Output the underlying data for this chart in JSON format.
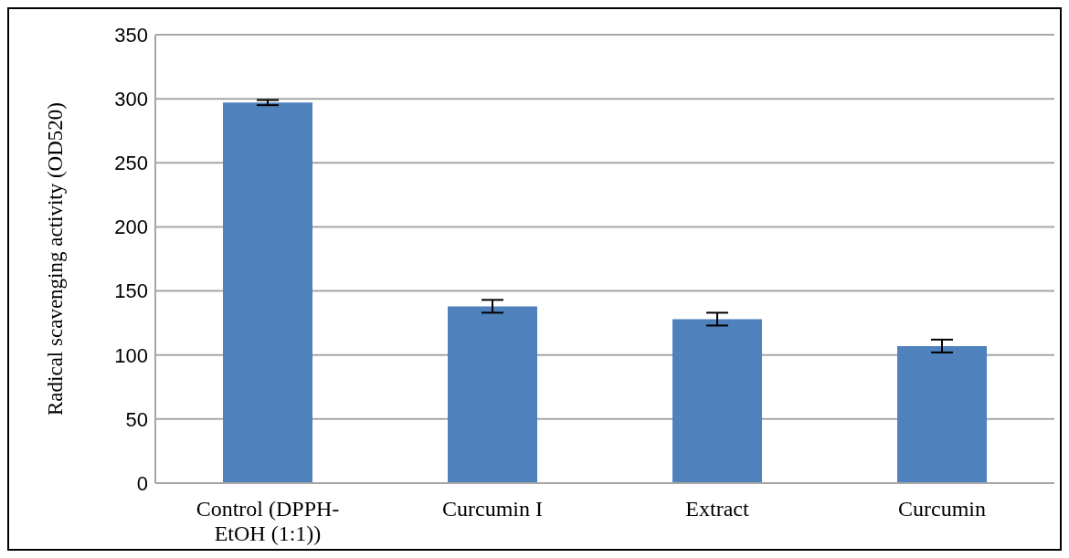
{
  "chart_data": {
    "type": "bar",
    "ylabel": "Radical scavenging activity (OD520)",
    "categories": [
      "Control (DPPH-EtOH (1:1))",
      "Curcumin I",
      "Extract",
      "Curcumin"
    ],
    "values": [
      297,
      138,
      128,
      107
    ],
    "errors": [
      2,
      5,
      5,
      5
    ],
    "color": "#4f81bd",
    "ylim": [
      0,
      350
    ],
    "yticks": [
      0,
      50,
      100,
      150,
      200,
      250,
      300,
      350
    ],
    "grid": "y",
    "legend": false
  }
}
